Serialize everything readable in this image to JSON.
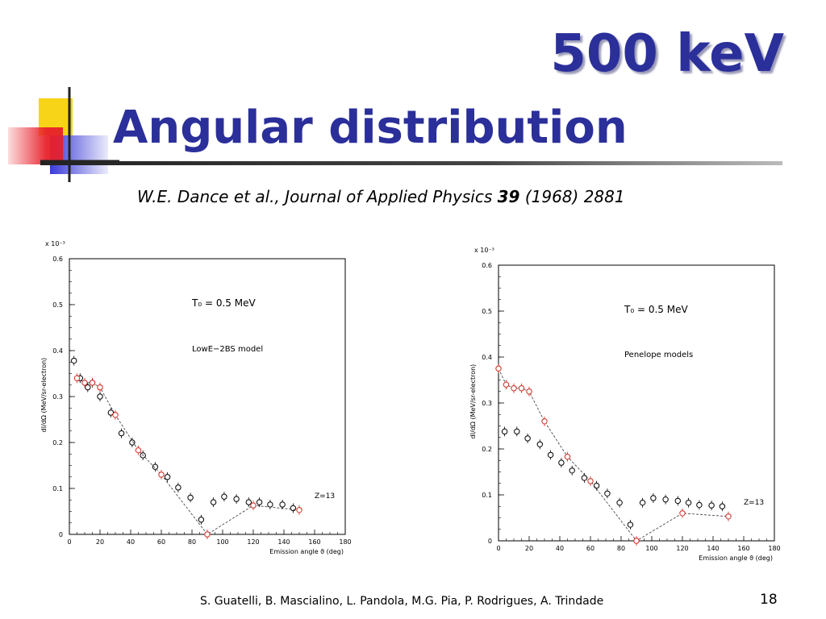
{
  "slide": {
    "title_energy": "500 keV",
    "title": "Angular distribution",
    "reference_authors": "W.E. Dance et al., Journal of Applied Physics ",
    "reference_volume": "39",
    "reference_rest": " (1968) 2881",
    "footer": "S. Guatelli, B. Mascialino, L. Pandola, M.G. Pia, P. Rodrigues, A. Trindade",
    "page_number": "18"
  },
  "colors": {
    "title": "#2b2f9a",
    "measured_points": "#000000",
    "simulated_points": "#d0281e",
    "logo_yellow": "#f7d417",
    "logo_blue": "#3a3ad8",
    "logo_red": "#e8202a"
  },
  "chart_data": [
    {
      "type": "scatter",
      "title": "",
      "annotation_energy": "T₀ = 0.5 MeV",
      "annotation_model": "LowE−2BS model",
      "annotation_z": "Z=13",
      "xlabel": "Emission angle ϑ (deg)",
      "ylabel": "dI/dΩ (MeV/sr-electron)",
      "y_multiplier": "x 10⁻³",
      "xlim": [
        0,
        180
      ],
      "ylim": [
        0,
        0.6
      ],
      "xticks": [
        0,
        20,
        40,
        60,
        80,
        100,
        120,
        140,
        160,
        180
      ],
      "yticks": [
        0,
        0.1,
        0.2,
        0.3,
        0.4,
        0.5,
        0.6
      ],
      "grid": false,
      "series": [
        {
          "style": "open-black",
          "x": [
            3,
            7,
            12,
            15,
            20,
            27,
            34,
            41,
            48,
            56,
            64,
            71,
            79,
            86,
            94,
            101,
            109,
            117,
            124,
            131,
            139,
            146
          ],
          "y": [
            0.378,
            0.34,
            0.32,
            0.33,
            0.3,
            0.265,
            0.22,
            0.2,
            0.172,
            0.147,
            0.125,
            0.102,
            0.08,
            0.032,
            0.07,
            0.082,
            0.077,
            0.07,
            0.07,
            0.065,
            0.065,
            0.057
          ]
        },
        {
          "style": "open-red-dashed",
          "x": [
            5,
            10,
            15,
            20,
            30,
            45,
            60,
            90,
            120,
            150
          ],
          "y": [
            0.34,
            0.33,
            0.33,
            0.32,
            0.26,
            0.183,
            0.13,
            0.0,
            0.063,
            0.053
          ]
        }
      ]
    },
    {
      "type": "scatter",
      "title": "",
      "annotation_energy": "T₀ = 0.5 MeV",
      "annotation_model": "Penelope models",
      "annotation_z": "Z=13",
      "xlabel": "Emission angle ϑ (deg)",
      "ylabel": "dI/dΩ (MeV/sr-electron)",
      "y_multiplier": "x 10⁻³",
      "xlim": [
        0,
        180
      ],
      "ylim": [
        0,
        0.6
      ],
      "xticks": [
        0,
        20,
        40,
        60,
        80,
        100,
        120,
        140,
        160,
        180
      ],
      "yticks": [
        0,
        0.1,
        0.2,
        0.3,
        0.4,
        0.5,
        0.6
      ],
      "grid": false,
      "series": [
        {
          "style": "open-black",
          "x": [
            4,
            12,
            19,
            27,
            34,
            41,
            48,
            56,
            64,
            71,
            79,
            86,
            94,
            101,
            109,
            117,
            124,
            131,
            139,
            146
          ],
          "y": [
            0.238,
            0.238,
            0.223,
            0.21,
            0.187,
            0.17,
            0.153,
            0.137,
            0.12,
            0.103,
            0.083,
            0.035,
            0.083,
            0.093,
            0.09,
            0.087,
            0.083,
            0.078,
            0.077,
            0.075
          ]
        },
        {
          "style": "open-red-dashed",
          "x": [
            0,
            5,
            10,
            15,
            20,
            30,
            45,
            60,
            90,
            120,
            150
          ],
          "y": [
            0.375,
            0.34,
            0.332,
            0.332,
            0.325,
            0.26,
            0.183,
            0.13,
            0.0,
            0.06,
            0.053
          ]
        }
      ]
    }
  ]
}
